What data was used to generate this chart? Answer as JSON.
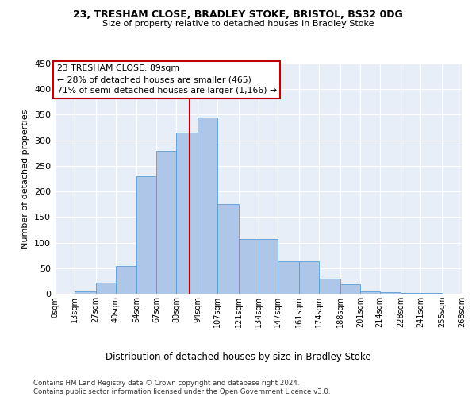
{
  "title1": "23, TRESHAM CLOSE, BRADLEY STOKE, BRISTOL, BS32 0DG",
  "title2": "Size of property relative to detached houses in Bradley Stoke",
  "xlabel": "Distribution of detached houses by size in Bradley Stoke",
  "ylabel": "Number of detached properties",
  "bin_labels": [
    "0sqm",
    "13sqm",
    "27sqm",
    "40sqm",
    "54sqm",
    "67sqm",
    "80sqm",
    "94sqm",
    "107sqm",
    "121sqm",
    "134sqm",
    "147sqm",
    "161sqm",
    "174sqm",
    "188sqm",
    "201sqm",
    "214sqm",
    "228sqm",
    "241sqm",
    "255sqm",
    "268sqm"
  ],
  "bin_edges": [
    0,
    13,
    27,
    40,
    54,
    67,
    80,
    94,
    107,
    121,
    134,
    147,
    161,
    174,
    188,
    201,
    214,
    228,
    241,
    255,
    268
  ],
  "bar_heights": [
    0,
    5,
    22,
    55,
    230,
    280,
    315,
    345,
    175,
    107,
    107,
    63,
    63,
    30,
    18,
    5,
    3,
    2,
    1,
    0
  ],
  "bar_color": "#aec6e8",
  "bar_edge_color": "#5b9bd5",
  "property_size": 89,
  "annotation_text": "23 TRESHAM CLOSE: 89sqm\n← 28% of detached houses are smaller (465)\n71% of semi-detached houses are larger (1,166) →",
  "vline_color": "#c00000",
  "annotation_box_color": "#ffffff",
  "annotation_box_edge": "#c00000",
  "footer": "Contains HM Land Registry data © Crown copyright and database right 2024.\nContains public sector information licensed under the Open Government Licence v3.0.",
  "ylim": [
    0,
    450
  ],
  "xlim": [
    0,
    268
  ],
  "background_color": "#e8eef8",
  "grid_color": "#ffffff"
}
